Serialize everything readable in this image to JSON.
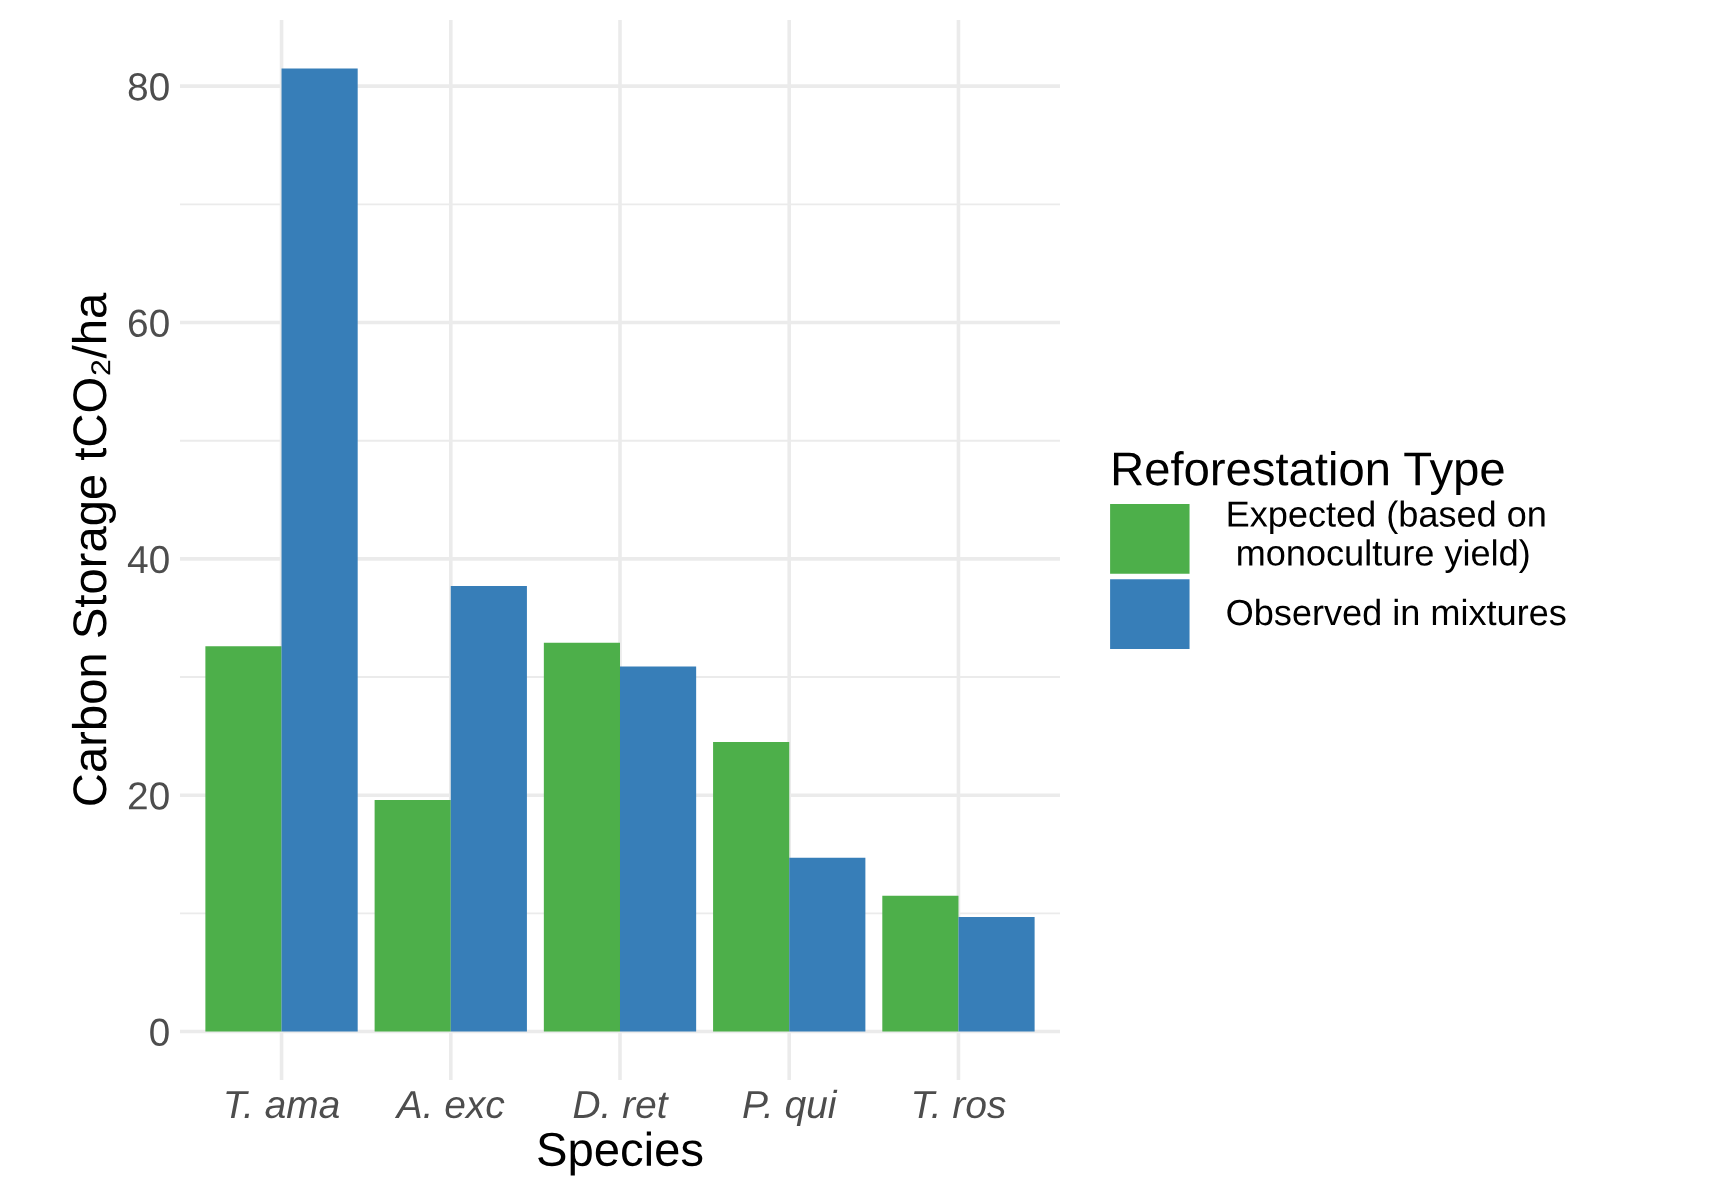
{
  "chart_data": {
    "type": "bar",
    "xlabel": "Species",
    "ylabel": "Carbon Storage tCO₂/ha",
    "legend_title": "Reforestation Type",
    "categories": [
      "T. ama",
      "A. exc",
      "D. ret",
      "P. qui",
      "T. ros"
    ],
    "series": [
      {
        "name": "Expected (based on\n monoculture yield)",
        "color": "#4daf4a",
        "values": [
          32.6,
          19.6,
          32.9,
          24.5,
          11.5
        ]
      },
      {
        "name": "Observed in mixtures",
        "color": "#377eb8",
        "values": [
          81.5,
          37.7,
          30.9,
          14.7,
          9.7
        ]
      }
    ],
    "ylim": [
      -4.1,
      85.6
    ],
    "yticks": [
      0,
      20,
      40,
      60,
      80
    ],
    "grid": true,
    "legend": "right"
  }
}
